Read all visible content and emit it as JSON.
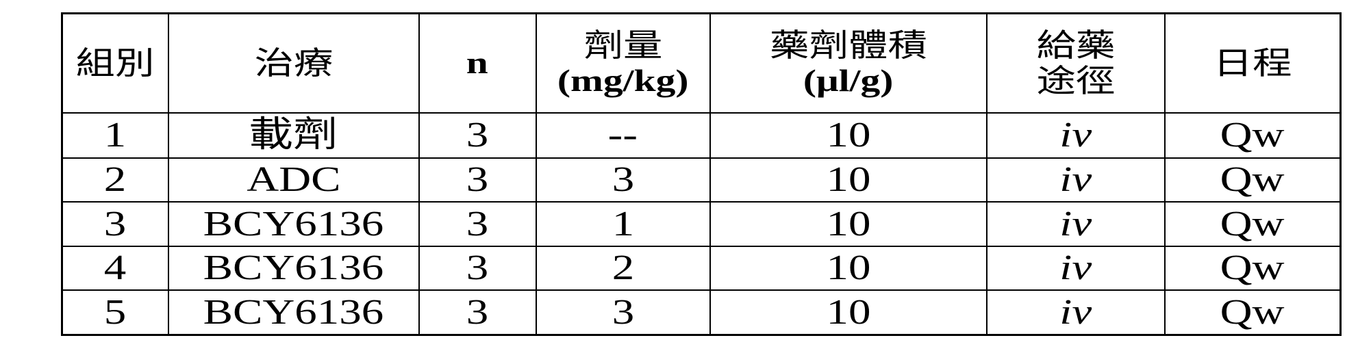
{
  "table": {
    "headers": [
      {
        "line1": "組別",
        "line2": ""
      },
      {
        "line1": "治療",
        "line2": ""
      },
      {
        "line1": "n",
        "line2": ""
      },
      {
        "line1": "劑量",
        "line2": "(mg/kg)"
      },
      {
        "line1": "藥劑體積",
        "line2": "(μl/g)"
      },
      {
        "line1": "給藥",
        "line2": "途徑"
      },
      {
        "line1": "日程",
        "line2": ""
      }
    ],
    "rows": [
      [
        "1",
        "載劑",
        "3",
        "--",
        "10",
        "iv",
        "Qw"
      ],
      [
        "2",
        "ADC",
        "3",
        "3",
        "10",
        "iv",
        "Qw"
      ],
      [
        "3",
        "BCY6136",
        "3",
        "1",
        "10",
        "iv",
        "Qw"
      ],
      [
        "4",
        "BCY6136",
        "3",
        "2",
        "10",
        "iv",
        "Qw"
      ],
      [
        "5",
        "BCY6136",
        "3",
        "3",
        "10",
        "iv",
        "Qw"
      ]
    ]
  }
}
